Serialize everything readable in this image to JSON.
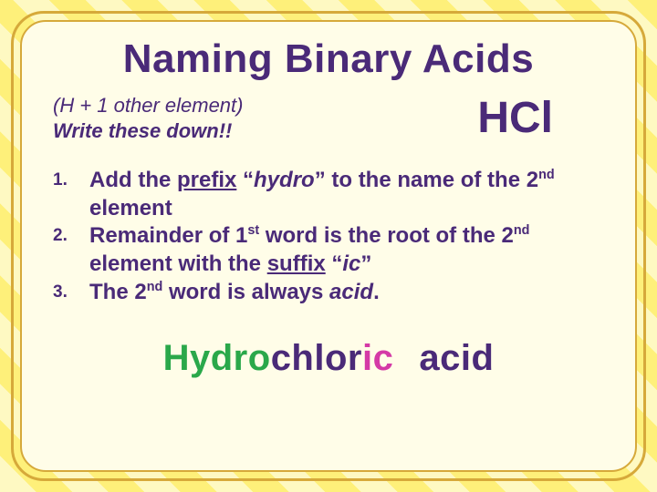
{
  "colors": {
    "stripe_light": "#fef9c2",
    "stripe_dark": "#fef07a",
    "border": "#d6a93a",
    "panel_bg": "#fffde8",
    "text_primary": "#4a2a78",
    "accent_green": "#2aa84a",
    "accent_pink": "#d43aa6"
  },
  "typography": {
    "family": "Verdana",
    "title_size_pt": 33,
    "sub_size_pt": 17,
    "formula_size_pt": 36,
    "list_size_pt": 18,
    "list_marker_size_pt": 14,
    "answer_size_pt": 30
  },
  "title": "Naming Binary Acids",
  "subtitle": {
    "line1": "(H + 1 other element)",
    "line2": "Write these down!!"
  },
  "formula": "HCl",
  "rules": [
    {
      "pre": "Add the ",
      "underlined": "prefix",
      "mid": " “",
      "quoted": "hydro",
      "post": "” to the name of the 2",
      "sup": "nd",
      "tail": " element"
    },
    {
      "pre": "Remainder of 1",
      "sup1": "st",
      "mid1": " word is the root of the 2",
      "sup2": "nd",
      "mid2": " element with the ",
      "underlined": "suffix",
      "q1": " “",
      "quoted": "ic",
      "q2": "”"
    },
    {
      "pre": "The 2",
      "sup": "nd",
      "mid": " word is always ",
      "italic": "acid",
      "tail": "."
    }
  ],
  "answer": {
    "part1": "Hydro",
    "part2": "chlor",
    "part3": "ic",
    "part4": "acid"
  }
}
